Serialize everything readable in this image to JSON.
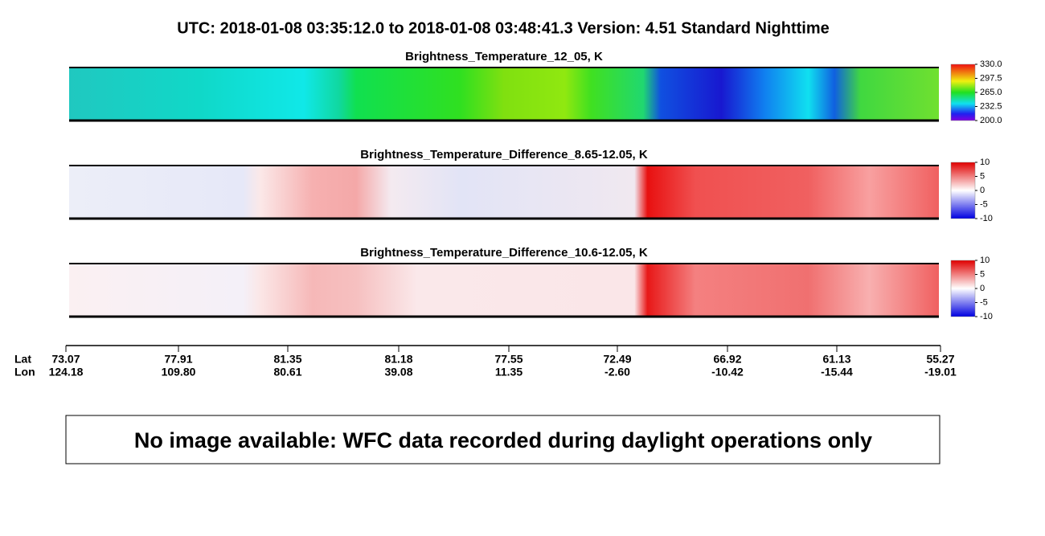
{
  "header": {
    "title": "UTC:  2018-01-08   03:35:12.0  to  2018-01-08   03:48:41.3    Version: 4.51  Standard Nighttime"
  },
  "panels": [
    {
      "title": "Brightness_Temperature_12_05, K",
      "colorbar_ticks": [
        "330.0",
        "297.5",
        "265.0",
        "232.5",
        "200.0"
      ]
    },
    {
      "title": "Brightness_Temperature_Difference_8.65-12.05, K",
      "colorbar_ticks": [
        "10",
        "5",
        "0",
        "-5",
        "-10"
      ]
    },
    {
      "title": "Brightness_Temperature_Difference_10.6-12.05, K",
      "colorbar_ticks": [
        "10",
        "5",
        "0",
        "-5",
        "-10"
      ]
    }
  ],
  "axis": {
    "row_labels": [
      "Lat",
      "Lon"
    ],
    "ticks": [
      {
        "lat": "73.07",
        "lon": "124.18"
      },
      {
        "lat": "77.91",
        "lon": "109.80"
      },
      {
        "lat": "81.35",
        "lon": "80.61"
      },
      {
        "lat": "81.18",
        "lon": "39.08"
      },
      {
        "lat": "77.55",
        "lon": "11.35"
      },
      {
        "lat": "72.49",
        "lon": "-2.60"
      },
      {
        "lat": "66.92",
        "lon": "-10.42"
      },
      {
        "lat": "61.13",
        "lon": "-15.44"
      },
      {
        "lat": "55.27",
        "lon": "-19.01"
      }
    ]
  },
  "notice": "No image available: WFC data recorded during daylight operations only"
}
